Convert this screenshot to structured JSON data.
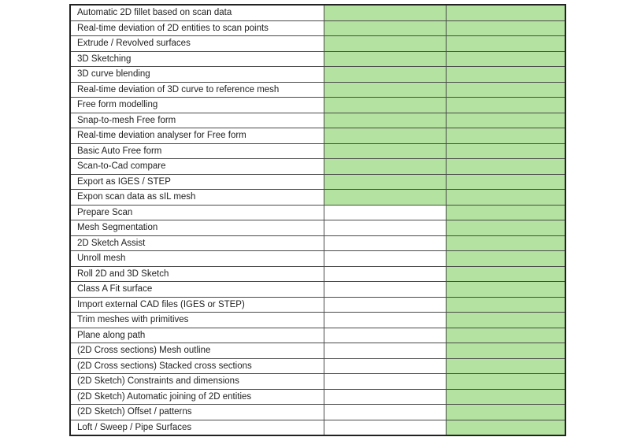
{
  "page": {
    "background_color": "#ffffff"
  },
  "table": {
    "fill_color": "#b4e2a0",
    "empty_color": "#ffffff",
    "grid_color": "#4a4a4a",
    "rows": [
      {
        "feature": "Automatic 2D fillet based on scan data",
        "col2": "filled",
        "col3": "filled"
      },
      {
        "feature": "Real-time deviation of 2D entities to scan points",
        "col2": "filled",
        "col3": "filled"
      },
      {
        "feature": "Extrude / Revolved surfaces",
        "col2": "filled",
        "col3": "filled"
      },
      {
        "feature": "3D Sketching",
        "col2": "filled",
        "col3": "filled"
      },
      {
        "feature": "3D curve blending",
        "col2": "filled",
        "col3": "filled"
      },
      {
        "feature": "Real-time deviation of 3D curve to reference mesh",
        "col2": "filled",
        "col3": "filled"
      },
      {
        "feature": "Free form modelling",
        "col2": "filled",
        "col3": "filled"
      },
      {
        "feature": "Snap-to-mesh Free form",
        "col2": "filled",
        "col3": "filled"
      },
      {
        "feature": "Real-time deviation analyser for Free form",
        "col2": "filled",
        "col3": "filled"
      },
      {
        "feature": "Basic Auto Free form",
        "col2": "filled",
        "col3": "filled"
      },
      {
        "feature": "Scan-to-Cad compare",
        "col2": "filled",
        "col3": "filled"
      },
      {
        "feature": "Export as IGES / STEP",
        "col2": "filled",
        "col3": "filled"
      },
      {
        "feature": "Expon scan data as sIL mesh",
        "col2": "filled",
        "col3": "filled"
      },
      {
        "feature": "Prepare Scan",
        "col2": "empty",
        "col3": "filled"
      },
      {
        "feature": "Mesh Segmentation",
        "col2": "empty",
        "col3": "filled"
      },
      {
        "feature": "2D Sketch Assist",
        "col2": "empty",
        "col3": "filled"
      },
      {
        "feature": "Unroll mesh",
        "col2": "empty",
        "col3": "filled"
      },
      {
        "feature": "Roll 2D and 3D Sketch",
        "col2": "empty",
        "col3": "filled"
      },
      {
        "feature": "Class A Fit surface",
        "col2": "empty",
        "col3": "filled"
      },
      {
        "feature": "Import external CAD files (IGES or STEP)",
        "col2": "empty",
        "col3": "filled"
      },
      {
        "feature": "Trim meshes with primitives",
        "col2": "empty",
        "col3": "filled"
      },
      {
        "feature": "Plane along path",
        "col2": "empty",
        "col3": "filled"
      },
      {
        "feature": "(2D Cross sections) Mesh outline",
        "col2": "empty",
        "col3": "filled"
      },
      {
        "feature": "(2D Cross sections) Stacked cross sections",
        "col2": "empty",
        "col3": "filled"
      },
      {
        "feature": "(2D Sketch) Constraints and dimensions",
        "col2": "empty",
        "col3": "filled"
      },
      {
        "feature": "(2D Sketch) Automatic joining of 2D entities",
        "col2": "empty",
        "col3": "filled"
      },
      {
        "feature": "(2D Sketch) Offset / patterns",
        "col2": "empty",
        "col3": "filled"
      },
      {
        "feature": "Loft / Sweep / Pipe Surfaces",
        "col2": "empty",
        "col3": "filled"
      }
    ]
  }
}
